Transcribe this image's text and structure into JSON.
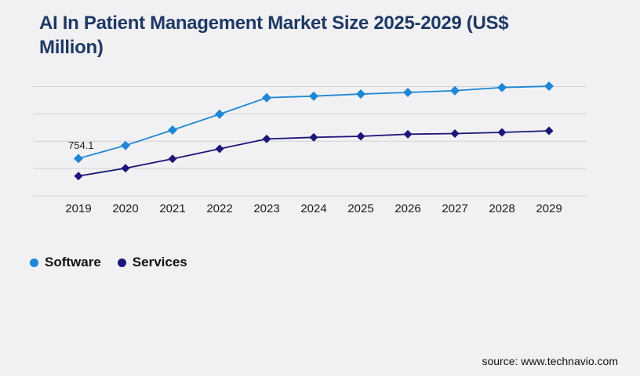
{
  "background_color": "#f1f1f3",
  "title": {
    "line1": "AI In Patient Management Market Size 2025-2029 (US$",
    "line2": "Million)",
    "full_text": "AI In Patient Management Market Size 2025-2029 (US$ Million)",
    "color": "#1f3864"
  },
  "chart_data": {
    "type": "line",
    "title": "AI In Patient Management Market Size 2025-2029 (US$ Million)",
    "categories": [
      "2019",
      "2020",
      "2021",
      "2022",
      "2023",
      "2024",
      "2025",
      "2026",
      "2027",
      "2028",
      "2029"
    ],
    "series": [
      {
        "name": "Software",
        "color": "#1e87d5",
        "marker": "diamond",
        "values": [
          754.1,
          1017,
          1328,
          1649,
          1981,
          2013,
          2055,
          2087,
          2123,
          2187,
          2213
        ]
      },
      {
        "name": "Services",
        "color": "#1c1678",
        "marker": "diamond",
        "values": [
          400,
          558,
          748,
          949,
          1149,
          1181,
          1202,
          1244,
          1257,
          1281,
          1312
        ]
      }
    ],
    "data_labels": [
      {
        "series": "Software",
        "category": "2019",
        "text": "754.1"
      }
    ],
    "xlabel": "",
    "ylabel": "",
    "ylim": [
      0,
      2206
    ],
    "gridlines": "horizontal",
    "gridline_count": 5,
    "y_axis_labels_visible": false,
    "legend_position": "bottom-left"
  },
  "legend": {
    "items": [
      {
        "label": "Software",
        "color": "#1e87d5"
      },
      {
        "label": "Services",
        "color": "#1c1678"
      }
    ]
  },
  "footer": {
    "source": "source: www.technavio.com"
  }
}
